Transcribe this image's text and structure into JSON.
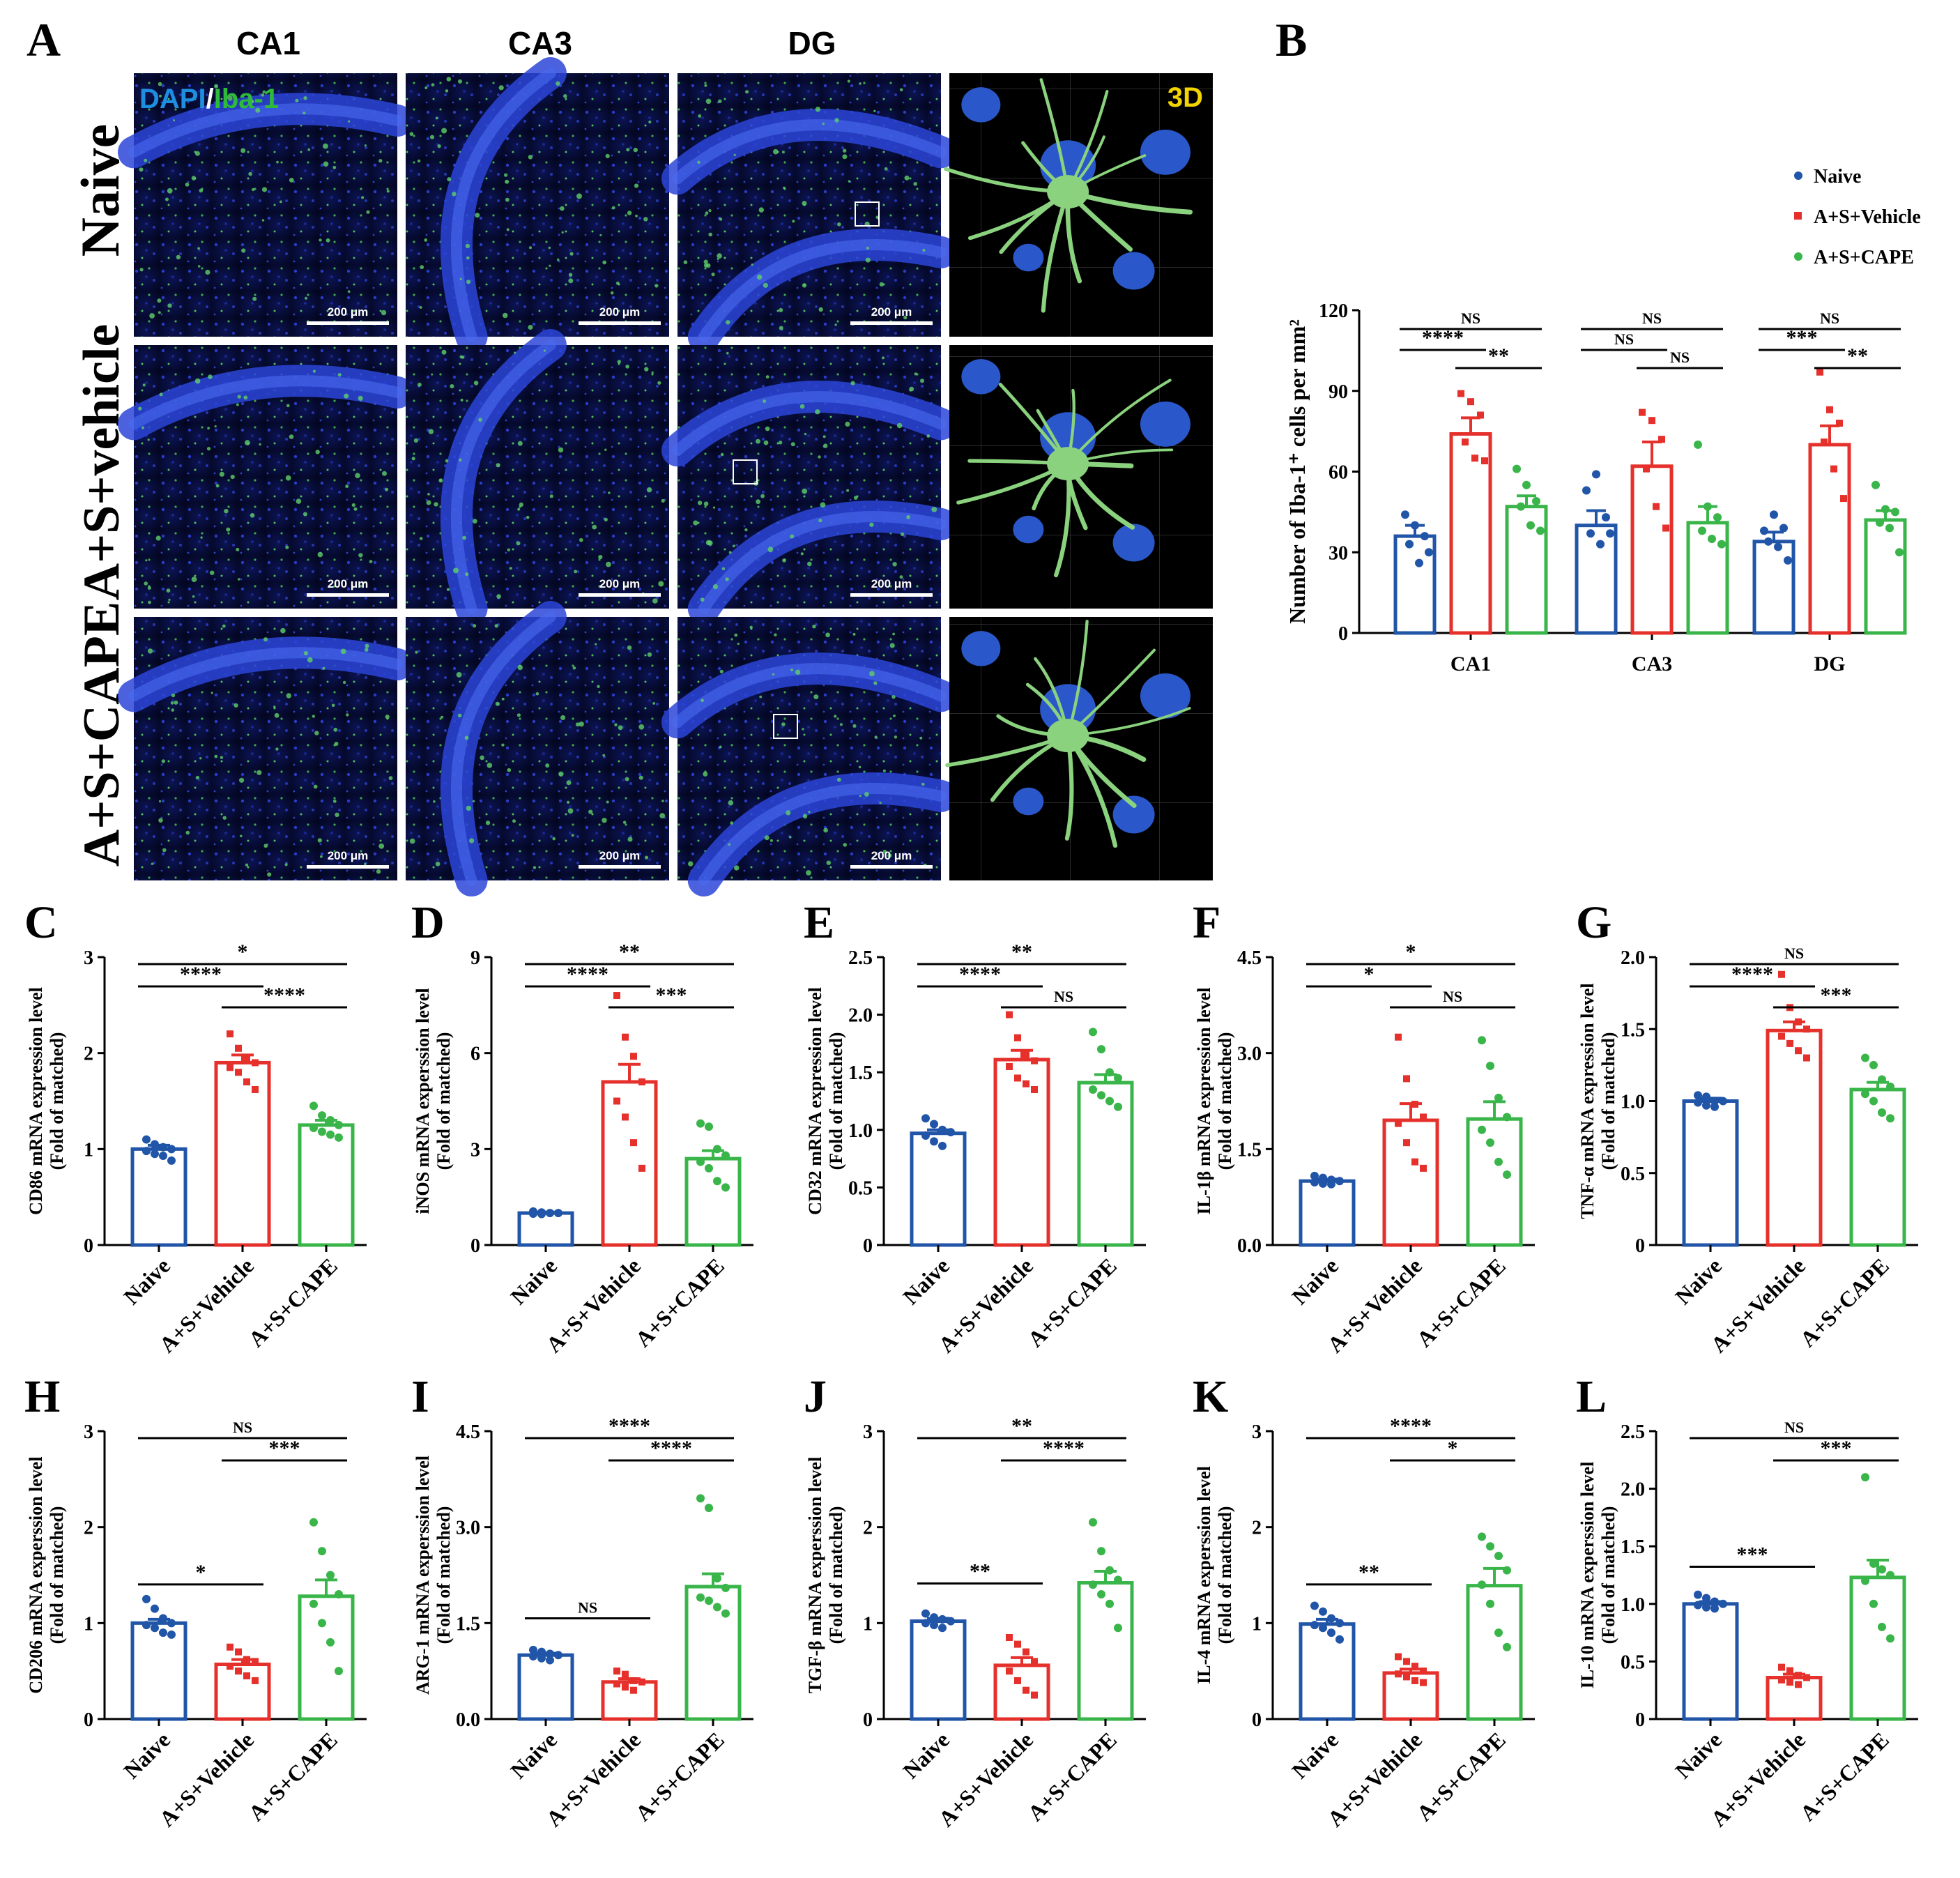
{
  "colors": {
    "naive": "#2055A8",
    "vehicle": "#E5302B",
    "cape": "#39B54A",
    "dapi_text": "#1E8FE0",
    "iba_text": "#2EBB3A",
    "three_d": "#F2D400",
    "tissue_dark": "#04082a",
    "tissue_blue": "#1e2ea0",
    "microglia": "#8ad27e"
  },
  "groups": [
    "Naive",
    "A+S+Vehicle",
    "A+S+CAPE"
  ],
  "panelA": {
    "letter": "A",
    "columns": [
      "CA1",
      "CA3",
      "DG"
    ],
    "rows": [
      "Naive",
      "A+S+vehicle",
      "A+S+CAPE"
    ],
    "stain_dapi": "DAPI",
    "stain_sep": "/",
    "stain_iba": "Iba-1",
    "three_d": "3D",
    "scale_bar": "200 μm"
  },
  "chart_data": [
    {
      "panel": "B",
      "type": "bar",
      "categories": [
        "CA1",
        "CA3",
        "DG"
      ],
      "ylabel": "Number of  Iba-1⁺ cells per mm²",
      "ylim": [
        0,
        120
      ],
      "yticks": [
        "0",
        "30",
        "60",
        "90",
        "120"
      ],
      "legend": [
        "Naive",
        "A+S+Vehicle",
        "A+S+CAPE"
      ],
      "legend_position": "top-right",
      "series": [
        {
          "name": "Naive",
          "values": [
            36,
            40,
            34
          ],
          "errors": [
            4,
            5.5,
            3.5
          ],
          "points": [
            [
              44,
              40,
              36,
              33,
              26,
              30
            ],
            [
              53,
              59,
              43,
              37,
              33,
              37
            ],
            [
              38,
              44,
              39,
              34,
              32,
              27
            ]
          ]
        },
        {
          "name": "A+S+Vehicle",
          "values": [
            74,
            62,
            70
          ],
          "errors": [
            6,
            9,
            7
          ],
          "points": [
            [
              89,
              86,
              81,
              71,
              65,
              64
            ],
            [
              82,
              79,
              72,
              61,
              47,
              39
            ],
            [
              97,
              83,
              78,
              71,
              61,
              50
            ]
          ]
        },
        {
          "name": "A+S+CAPE",
          "values": [
            47,
            41,
            42
          ],
          "errors": [
            4,
            6,
            3.5
          ],
          "points": [
            [
              61,
              55,
              49,
              47,
              40,
              38
            ],
            [
              70,
              47,
              43,
              38,
              35,
              33
            ],
            [
              55,
              46,
              45,
              41,
              39,
              30
            ]
          ]
        }
      ],
      "comparisons": [
        {
          "cat": 0,
          "from": 0,
          "to": 2,
          "label": "NS"
        },
        {
          "cat": 0,
          "from": 0,
          "to": 1,
          "label": "****"
        },
        {
          "cat": 0,
          "from": 1,
          "to": 2,
          "label": "**"
        },
        {
          "cat": 1,
          "from": 0,
          "to": 2,
          "label": "NS"
        },
        {
          "cat": 1,
          "from": 0,
          "to": 1,
          "label": "NS"
        },
        {
          "cat": 1,
          "from": 1,
          "to": 2,
          "label": "NS"
        },
        {
          "cat": 2,
          "from": 0,
          "to": 2,
          "label": "NS"
        },
        {
          "cat": 2,
          "from": 0,
          "to": 1,
          "label": "***"
        },
        {
          "cat": 2,
          "from": 1,
          "to": 2,
          "label": "**"
        }
      ]
    },
    {
      "panel": "C",
      "type": "bar",
      "ylabel": "CD86 mRNA expression level",
      "ylabel2": "(Fold of matched)",
      "ylim": [
        0,
        3
      ],
      "yticks": [
        "0",
        "1",
        "2",
        "3"
      ],
      "values": [
        1.0,
        1.9,
        1.25
      ],
      "errors": [
        0.04,
        0.08,
        0.05
      ],
      "points": [
        [
          1.1,
          1.05,
          1.02,
          1.0,
          0.98,
          0.95,
          0.93,
          0.88
        ],
        [
          2.2,
          2.05,
          1.95,
          1.9,
          1.85,
          1.8,
          1.7,
          1.62
        ],
        [
          1.45,
          1.35,
          1.3,
          1.25,
          1.22,
          1.18,
          1.15,
          1.12
        ]
      ],
      "comparisons": [
        {
          "from": 0,
          "to": 2,
          "label": "*"
        },
        {
          "from": 0,
          "to": 1,
          "label": "****"
        },
        {
          "from": 1,
          "to": 2,
          "label": "****"
        }
      ]
    },
    {
      "panel": "D",
      "type": "bar",
      "ylabel": "iNOS mRNA experssion level",
      "ylabel2": "(Fold of matched)",
      "ylim": [
        0,
        9
      ],
      "yticks": [
        "0",
        "3",
        "6",
        "9"
      ],
      "values": [
        1.0,
        5.1,
        2.7
      ],
      "errors": [
        0.03,
        0.55,
        0.25
      ],
      "points": [
        [
          1.05,
          1.02,
          1.0,
          1.0,
          0.98,
          0.97
        ],
        [
          7.8,
          6.5,
          5.9,
          5.1,
          4.5,
          4.0,
          3.2,
          2.4
        ],
        [
          3.8,
          3.7,
          3.0,
          2.8,
          2.6,
          2.4,
          2.0,
          1.8
        ]
      ],
      "comparisons": [
        {
          "from": 0,
          "to": 2,
          "label": "**"
        },
        {
          "from": 0,
          "to": 1,
          "label": "****"
        },
        {
          "from": 1,
          "to": 2,
          "label": "***"
        }
      ]
    },
    {
      "panel": "E",
      "type": "bar",
      "ylabel": "CD32 mRNA expression level",
      "ylabel2": "(Fold of matched)",
      "ylim": [
        0,
        2.5
      ],
      "yticks": [
        "0",
        "0.5",
        "1.0",
        "1.5",
        "2.0",
        "2.5"
      ],
      "values": [
        0.97,
        1.61,
        1.41
      ],
      "errors": [
        0.03,
        0.08,
        0.07
      ],
      "points": [
        [
          1.1,
          1.05,
          1.0,
          0.98,
          0.95,
          0.9,
          0.86
        ],
        [
          2.0,
          1.8,
          1.65,
          1.6,
          1.55,
          1.45,
          1.4,
          1.35
        ],
        [
          1.85,
          1.7,
          1.5,
          1.45,
          1.35,
          1.3,
          1.25,
          1.2
        ]
      ],
      "comparisons": [
        {
          "from": 0,
          "to": 2,
          "label": "**"
        },
        {
          "from": 0,
          "to": 1,
          "label": "****"
        },
        {
          "from": 1,
          "to": 2,
          "label": "NS"
        }
      ]
    },
    {
      "panel": "F",
      "type": "bar",
      "ylabel": "IL-1β mRNA expression level",
      "ylabel2": "(Fold of matched)",
      "ylim": [
        0,
        4.5
      ],
      "yticks": [
        "0.0",
        "1.5",
        "3.0",
        "4.5"
      ],
      "values": [
        1.0,
        1.95,
        1.97
      ],
      "errors": [
        0.03,
        0.26,
        0.27
      ],
      "points": [
        [
          1.08,
          1.05,
          1.02,
          1.0,
          0.98,
          0.96,
          0.95
        ],
        [
          3.25,
          2.6,
          2.2,
          2.0,
          1.9,
          1.6,
          1.3,
          1.2
        ],
        [
          3.2,
          2.8,
          2.3,
          2.0,
          1.8,
          1.6,
          1.3,
          1.1
        ]
      ],
      "comparisons": [
        {
          "from": 0,
          "to": 2,
          "label": "*"
        },
        {
          "from": 0,
          "to": 1,
          "label": "*"
        },
        {
          "from": 1,
          "to": 2,
          "label": "NS"
        }
      ]
    },
    {
      "panel": "G",
      "type": "bar",
      "ylabel": "TNF-α mRNA expression level",
      "ylabel2": "(Fold of matched)",
      "ylim": [
        0,
        2.0
      ],
      "yticks": [
        "0",
        "0.5",
        "1.0",
        "1.5",
        "2.0"
      ],
      "values": [
        1.0,
        1.49,
        1.08
      ],
      "errors": [
        0.02,
        0.06,
        0.05
      ],
      "points": [
        [
          1.04,
          1.03,
          1.0,
          1.0,
          0.99,
          0.97,
          0.96
        ],
        [
          1.88,
          1.65,
          1.55,
          1.5,
          1.45,
          1.4,
          1.35,
          1.3
        ],
        [
          1.3,
          1.25,
          1.15,
          1.1,
          1.05,
          1.0,
          0.92,
          0.88
        ]
      ],
      "comparisons": [
        {
          "from": 0,
          "to": 2,
          "label": "NS"
        },
        {
          "from": 0,
          "to": 1,
          "label": "****"
        },
        {
          "from": 1,
          "to": 2,
          "label": "***"
        }
      ]
    },
    {
      "panel": "H",
      "type": "bar",
      "ylabel": "CD206 mRNA experssion level",
      "ylabel2": "(Fold of matched)",
      "ylim": [
        0,
        3
      ],
      "yticks": [
        "0",
        "1",
        "2",
        "3"
      ],
      "values": [
        1.0,
        0.57,
        1.28
      ],
      "errors": [
        0.04,
        0.05,
        0.17
      ],
      "points": [
        [
          1.25,
          1.15,
          1.05,
          1.0,
          0.98,
          0.95,
          0.9,
          0.88
        ],
        [
          0.75,
          0.7,
          0.62,
          0.6,
          0.55,
          0.5,
          0.45,
          0.4
        ],
        [
          2.05,
          1.75,
          1.5,
          1.3,
          1.2,
          1.0,
          0.8,
          0.5
        ]
      ],
      "comparisons": [
        {
          "from": 0,
          "to": 2,
          "label": "NS"
        },
        {
          "from": 1,
          "to": 2,
          "label": "***"
        },
        {
          "from": 0,
          "to": 1,
          "label": "*"
        }
      ]
    },
    {
      "panel": "I",
      "type": "bar",
      "ylabel": "ARG-1 mRNA experssion level",
      "ylabel2": "(Fold of matched)",
      "ylim": [
        0,
        4.5
      ],
      "yticks": [
        "0.0",
        "1.5",
        "3.0",
        "4.5"
      ],
      "values": [
        1.0,
        0.58,
        2.07
      ],
      "errors": [
        0.03,
        0.05,
        0.2
      ],
      "points": [
        [
          1.08,
          1.05,
          1.02,
          1.0,
          0.98,
          0.95,
          0.92
        ],
        [
          0.75,
          0.7,
          0.6,
          0.58,
          0.55,
          0.5,
          0.45
        ],
        [
          3.45,
          3.3,
          2.2,
          2.05,
          1.9,
          1.85,
          1.75,
          1.65
        ]
      ],
      "comparisons": [
        {
          "from": 0,
          "to": 2,
          "label": "****"
        },
        {
          "from": 1,
          "to": 2,
          "label": "****"
        },
        {
          "from": 0,
          "to": 1,
          "label": "NS"
        }
      ]
    },
    {
      "panel": "J",
      "type": "bar",
      "ylabel": "TGF-β mRNA experssion level",
      "ylabel2": "(Fold of matched)",
      "ylim": [
        0,
        3
      ],
      "yticks": [
        "0",
        "1",
        "2",
        "3"
      ],
      "values": [
        1.02,
        0.56,
        1.42
      ],
      "errors": [
        0.03,
        0.08,
        0.12
      ],
      "points": [
        [
          1.1,
          1.06,
          1.04,
          1.02,
          1.0,
          0.98,
          0.95
        ],
        [
          0.85,
          0.78,
          0.7,
          0.6,
          0.5,
          0.4,
          0.3,
          0.25
        ],
        [
          2.05,
          1.75,
          1.55,
          1.45,
          1.4,
          1.3,
          1.2,
          0.95
        ]
      ],
      "comparisons": [
        {
          "from": 0,
          "to": 2,
          "label": "**"
        },
        {
          "from": 1,
          "to": 2,
          "label": "****"
        },
        {
          "from": 0,
          "to": 1,
          "label": "**"
        }
      ]
    },
    {
      "panel": "K",
      "type": "bar",
      "ylabel": "IL-4 mRNA experssion level",
      "ylabel2": "(Fold of matched)",
      "ylim": [
        0,
        3
      ],
      "yticks": [
        "0",
        "1",
        "2",
        "3"
      ],
      "values": [
        0.99,
        0.48,
        1.39
      ],
      "errors": [
        0.05,
        0.04,
        0.18
      ],
      "points": [
        [
          1.18,
          1.12,
          1.05,
          1.0,
          0.98,
          0.95,
          0.9,
          0.83
        ],
        [
          0.65,
          0.6,
          0.55,
          0.5,
          0.47,
          0.44,
          0.4,
          0.38
        ],
        [
          1.9,
          1.8,
          1.7,
          1.55,
          1.4,
          1.2,
          0.9,
          0.75
        ]
      ],
      "comparisons": [
        {
          "from": 0,
          "to": 2,
          "label": "****"
        },
        {
          "from": 1,
          "to": 2,
          "label": "*"
        },
        {
          "from": 0,
          "to": 1,
          "label": "**"
        }
      ]
    },
    {
      "panel": "L",
      "type": "bar",
      "ylabel": "IL-10 mRNA experssion level",
      "ylabel2": "(Fold of matched)",
      "ylim": [
        0,
        2.5
      ],
      "yticks": [
        "0",
        "0.5",
        "1.0",
        "1.5",
        "2.0",
        "2.5"
      ],
      "values": [
        1.0,
        0.36,
        1.23
      ],
      "errors": [
        0.02,
        0.03,
        0.15
      ],
      "points": [
        [
          1.08,
          1.05,
          1.02,
          1.0,
          0.99,
          0.97,
          0.96
        ],
        [
          0.45,
          0.42,
          0.38,
          0.36,
          0.34,
          0.32,
          0.3
        ],
        [
          2.1,
          1.35,
          1.3,
          1.25,
          1.2,
          1.0,
          0.8,
          0.7
        ]
      ],
      "comparisons": [
        {
          "from": 0,
          "to": 2,
          "label": "NS"
        },
        {
          "from": 1,
          "to": 2,
          "label": "***"
        },
        {
          "from": 0,
          "to": 1,
          "label": "***"
        }
      ]
    }
  ]
}
